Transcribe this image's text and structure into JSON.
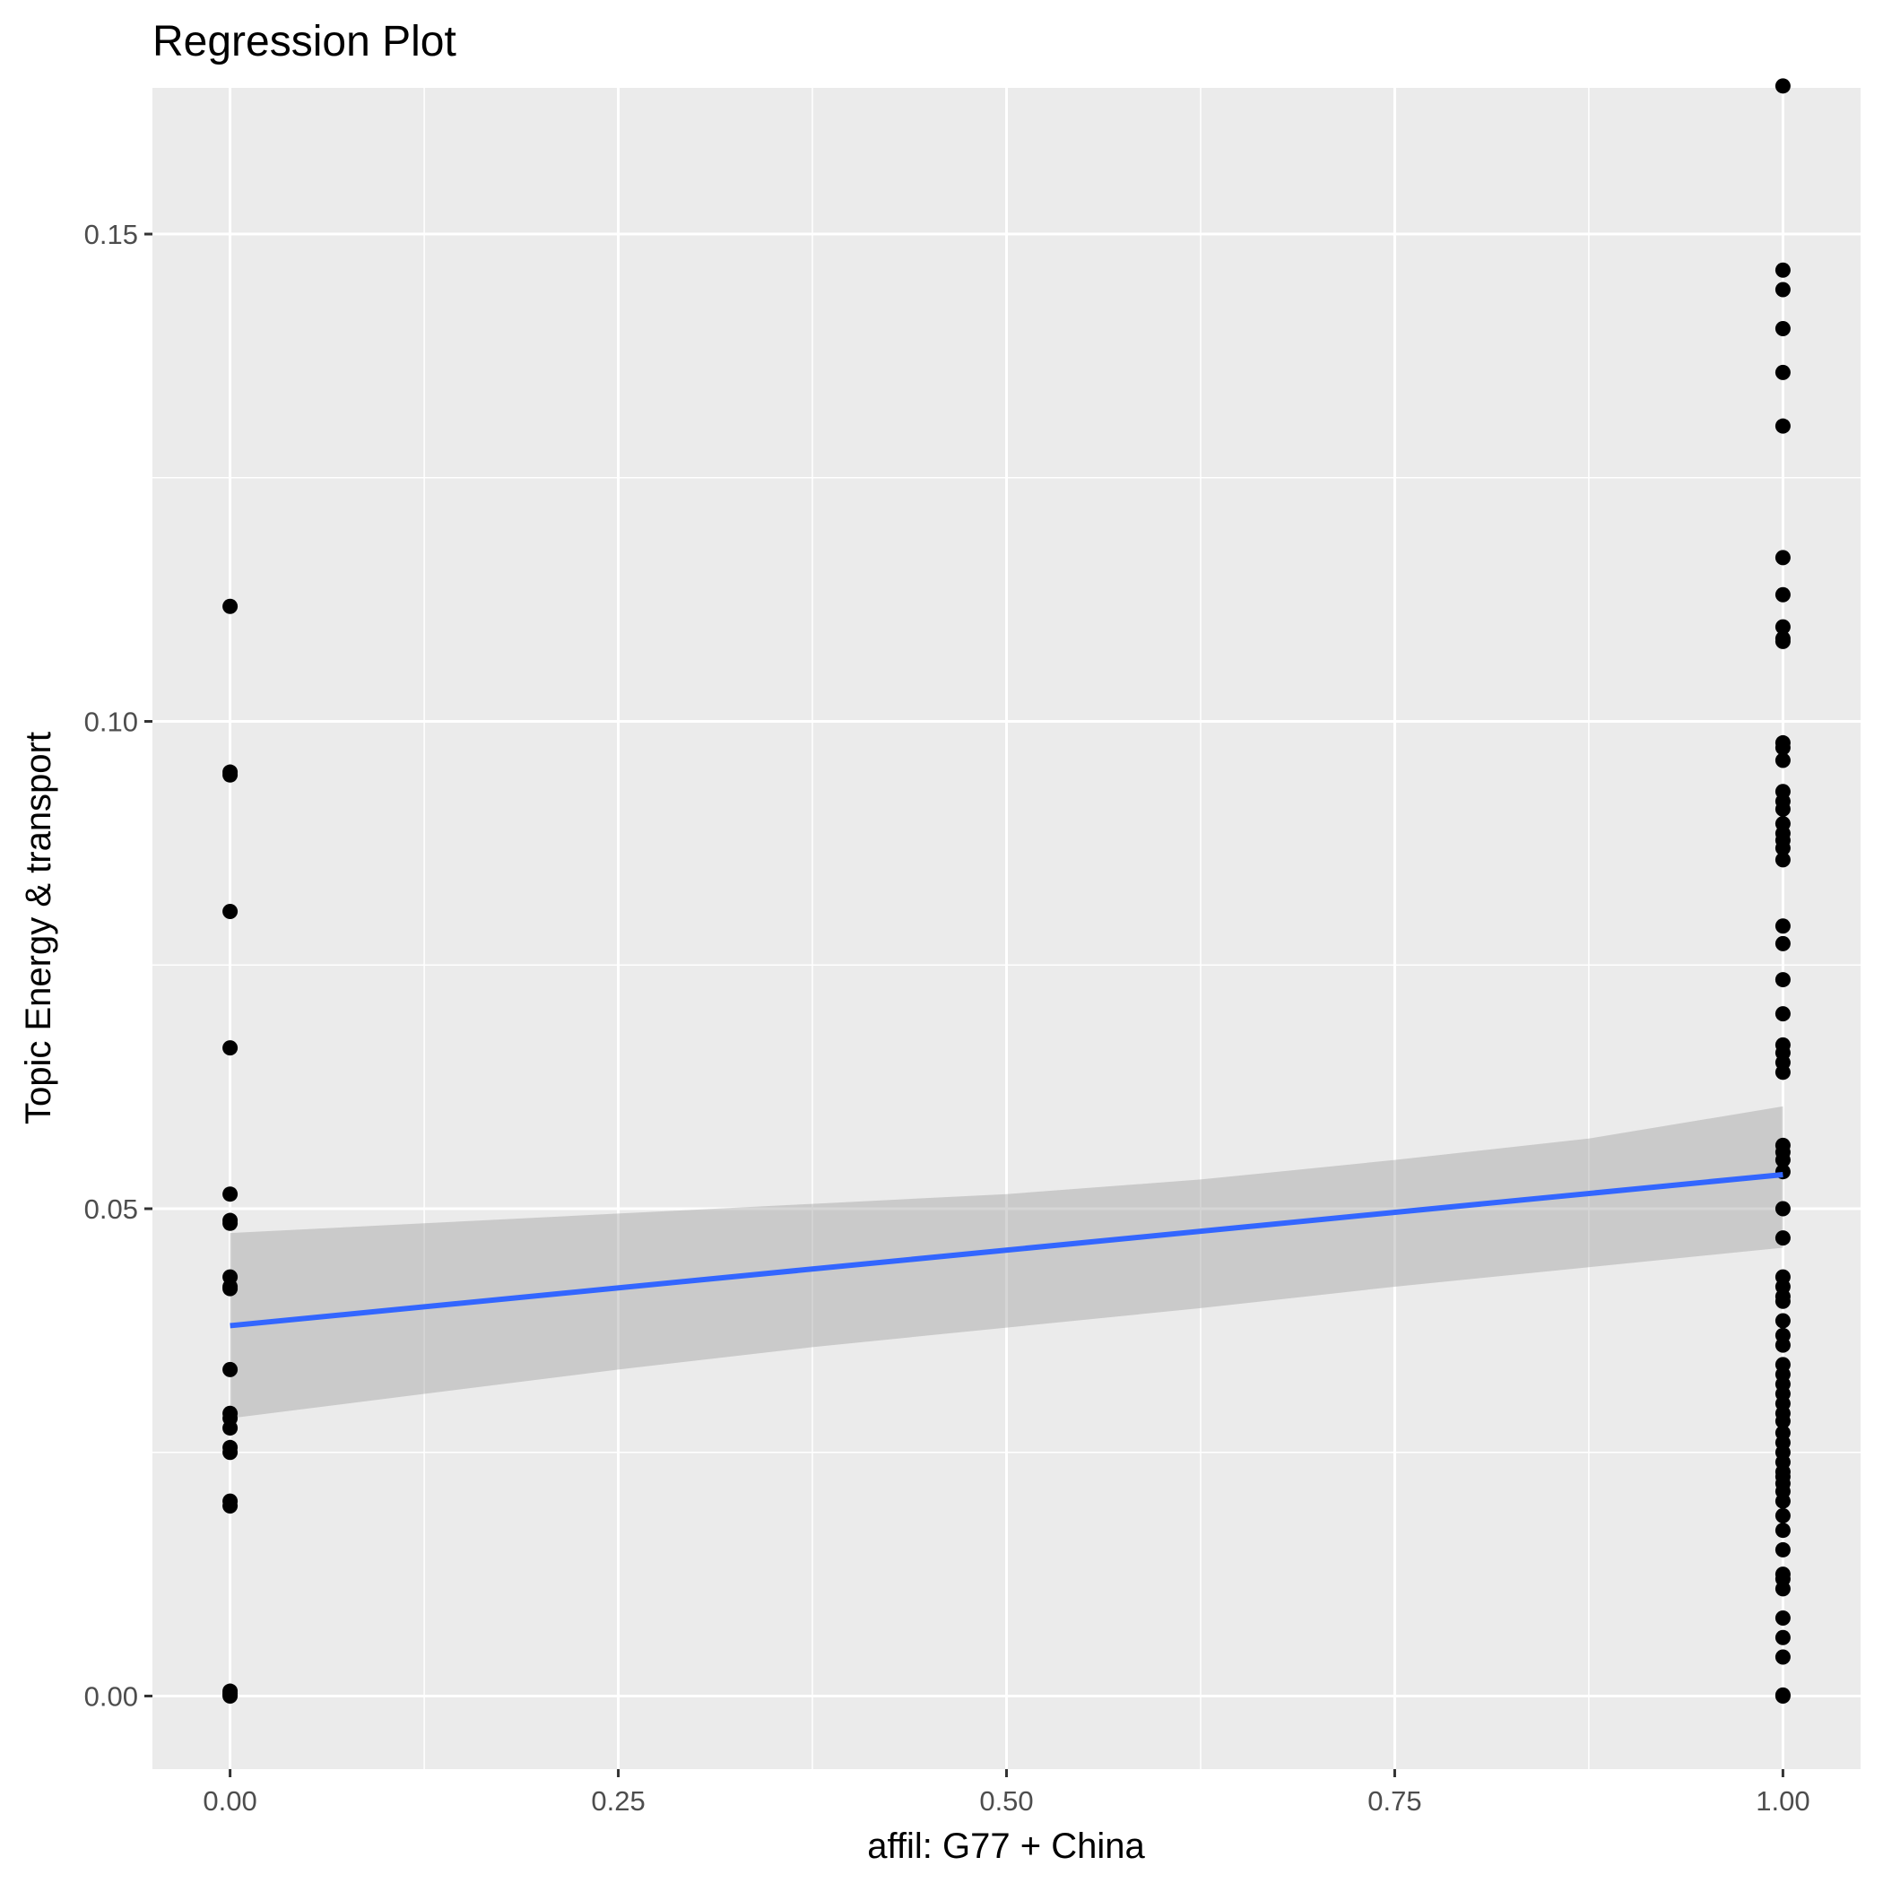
{
  "chart_data": {
    "type": "scatter",
    "title": "Regression Plot",
    "xlabel": "affil: G77 + China",
    "ylabel": "Topic Energy & transport",
    "xlim": [
      -0.05,
      1.05
    ],
    "ylim": [
      -0.0075,
      0.165
    ],
    "x_ticks": [
      0.0,
      0.25,
      0.5,
      0.75,
      1.0
    ],
    "x_tick_labels": [
      "0.00",
      "0.25",
      "0.50",
      "0.75",
      "1.00"
    ],
    "y_ticks": [
      0.0,
      0.05,
      0.1,
      0.15
    ],
    "y_tick_labels": [
      "0.00",
      "0.05",
      "0.10",
      "0.15"
    ],
    "grid": true,
    "legend": "none",
    "colors": {
      "panel": "#ebebeb",
      "grid": "#ffffff",
      "points": "#000000",
      "fit_line": "#3366ff",
      "confidence_band": "#999999"
    },
    "series": [
      {
        "group": "x = 0",
        "x": 0,
        "values": [
          0.1118,
          0.0948,
          0.0945,
          0.0805,
          0.0665,
          0.0515,
          0.0488,
          0.0485,
          0.043,
          0.042,
          0.0418,
          0.0335,
          0.029,
          0.0285,
          0.0275,
          0.0255,
          0.025,
          0.02,
          0.0195,
          0.0005,
          0.0003,
          0.0001,
          0.0
        ]
      },
      {
        "group": "x = 1",
        "x": 1,
        "values": [
          0.1652,
          0.1463,
          0.1443,
          0.1403,
          0.1358,
          0.1303,
          0.1168,
          0.113,
          0.1097,
          0.1085,
          0.1082,
          0.0978,
          0.0973,
          0.096,
          0.0928,
          0.0918,
          0.091,
          0.0895,
          0.0885,
          0.0878,
          0.087,
          0.0858,
          0.079,
          0.0772,
          0.0735,
          0.07,
          0.0668,
          0.066,
          0.065,
          0.064,
          0.0565,
          0.0558,
          0.055,
          0.0538,
          0.05,
          0.047,
          0.043,
          0.042,
          0.041,
          0.0405,
          0.0385,
          0.037,
          0.036,
          0.034,
          0.033,
          0.032,
          0.031,
          0.03,
          0.029,
          0.0282,
          0.027,
          0.026,
          0.025,
          0.024,
          0.023,
          0.0225,
          0.0218,
          0.021,
          0.02,
          0.0185,
          0.017,
          0.015,
          0.0125,
          0.012,
          0.011,
          0.008,
          0.006,
          0.004,
          0.0001,
          0.0
        ]
      }
    ],
    "fit_line": {
      "x": [
        0,
        1
      ],
      "y": [
        0.038,
        0.0535
      ]
    },
    "confidence_band": {
      "x": [
        0,
        0.125,
        0.25,
        0.375,
        0.5,
        0.625,
        0.75,
        0.875,
        1
      ],
      "lower": [
        0.0285,
        0.031,
        0.0335,
        0.0358,
        0.0378,
        0.0398,
        0.042,
        0.044,
        0.046
      ],
      "upper": [
        0.0475,
        0.0485,
        0.0495,
        0.0505,
        0.0515,
        0.053,
        0.055,
        0.0572,
        0.0605
      ]
    }
  }
}
